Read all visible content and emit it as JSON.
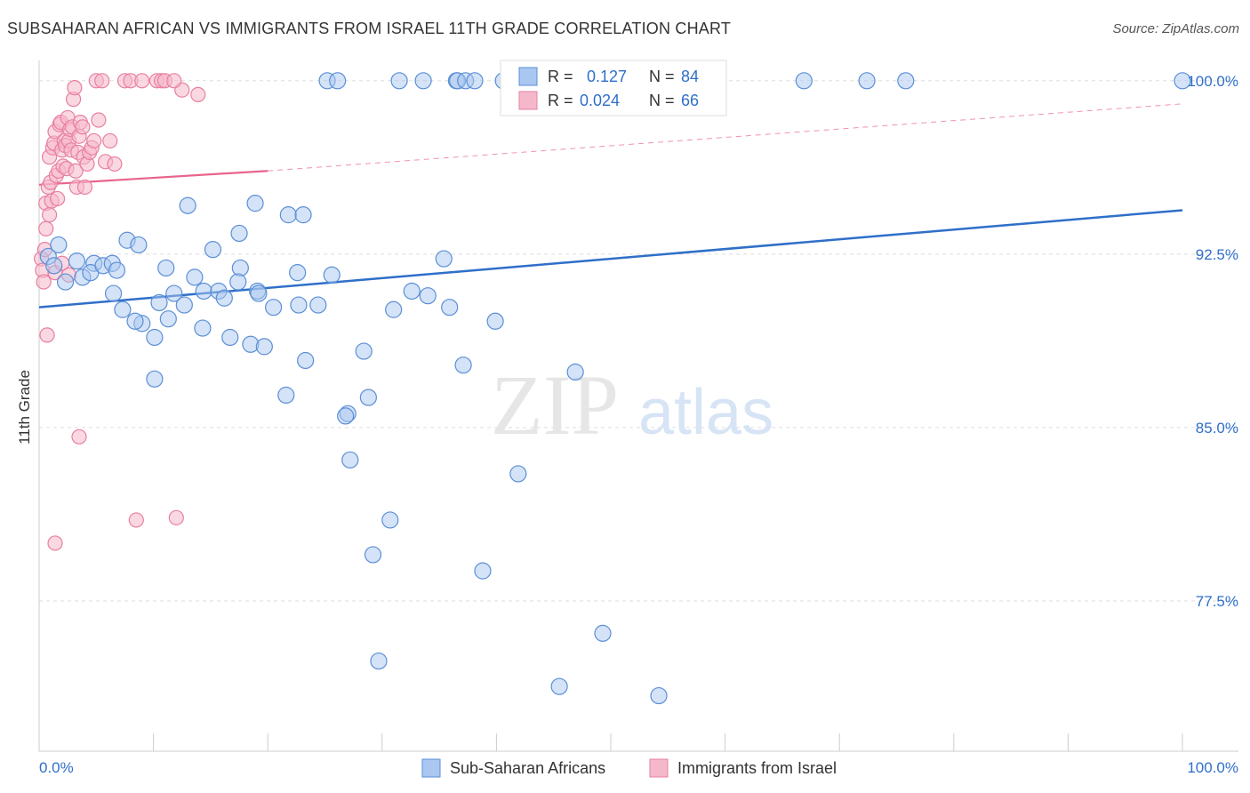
{
  "header": {
    "title": "SUBSAHARAN AFRICAN VS IMMIGRANTS FROM ISRAEL 11TH GRADE CORRELATION CHART",
    "source": "Source: ZipAtlas.com"
  },
  "watermark": {
    "zip": "ZIP",
    "atlas": "atlas"
  },
  "legend_box": {
    "rows": [
      {
        "r_label": "R =",
        "r_value": "0.127",
        "n_label": "N =",
        "n_value": "84"
      },
      {
        "r_label": "R =",
        "r_value": "0.024",
        "n_label": "N =",
        "n_value": "66"
      }
    ]
  },
  "colors": {
    "blue_fill": "#a9c7f0",
    "blue_stroke": "#5b8fd6",
    "blue_line": "#2f6fc9",
    "pink_fill": "#f5b8cb",
    "pink_stroke": "#e87fa0",
    "pink_line": "#e8648c",
    "value_text": "#2f6fc9",
    "grid": "#dddddd"
  },
  "chart_data": {
    "type": "scatter",
    "title": "SUBSAHARAN AFRICAN VS IMMIGRANTS FROM ISRAEL 11TH GRADE CORRELATION CHART",
    "xlabel": "",
    "ylabel": "11th Grade",
    "xlim": [
      0,
      100
    ],
    "ylim": [
      71,
      100.8
    ],
    "x_tick_labels": [
      "0.0%",
      "100.0%"
    ],
    "y_ticks": [
      77.5,
      85.0,
      92.5,
      100.0
    ],
    "y_tick_labels": [
      "77.5%",
      "85.0%",
      "92.5%",
      "100.0%"
    ],
    "grid": "horizontal dashed",
    "legend_placement": "bottom-center",
    "series": [
      {
        "name": "Sub-Saharan Africans",
        "R": 0.127,
        "N": 84,
        "trend": {
          "x": [
            0,
            100
          ],
          "y": [
            90.2,
            94.4
          ],
          "style": "solid"
        },
        "points": [
          [
            0.8,
            92.4
          ],
          [
            1.3,
            92.0
          ],
          [
            1.7,
            92.9
          ],
          [
            2.3,
            91.3
          ],
          [
            3.3,
            92.2
          ],
          [
            3.8,
            91.5
          ],
          [
            4.8,
            92.1
          ],
          [
            4.5,
            91.7
          ],
          [
            5.6,
            92.0
          ],
          [
            6.5,
            90.8
          ],
          [
            6.4,
            92.1
          ],
          [
            7.3,
            90.1
          ],
          [
            6.8,
            91.8
          ],
          [
            7.7,
            93.1
          ],
          [
            8.7,
            92.9
          ],
          [
            9.0,
            89.5
          ],
          [
            8.4,
            89.6
          ],
          [
            10.1,
            88.9
          ],
          [
            11.1,
            91.9
          ],
          [
            11.8,
            90.8
          ],
          [
            10.5,
            90.4
          ],
          [
            10.1,
            87.1
          ],
          [
            11.3,
            89.7
          ],
          [
            13.0,
            94.6
          ],
          [
            13.6,
            91.5
          ],
          [
            15.2,
            92.7
          ],
          [
            14.4,
            90.9
          ],
          [
            15.7,
            90.9
          ],
          [
            12.7,
            90.3
          ],
          [
            16.2,
            90.6
          ],
          [
            14.3,
            89.3
          ],
          [
            17.5,
            93.4
          ],
          [
            16.7,
            88.9
          ],
          [
            17.6,
            91.9
          ],
          [
            18.5,
            88.6
          ],
          [
            18.9,
            94.7
          ],
          [
            17.4,
            91.3
          ],
          [
            19.1,
            90.9
          ],
          [
            19.2,
            90.8
          ],
          [
            20.5,
            90.2
          ],
          [
            19.7,
            88.5
          ],
          [
            21.8,
            94.2
          ],
          [
            23.1,
            94.2
          ],
          [
            22.6,
            91.7
          ],
          [
            22.7,
            90.3
          ],
          [
            23.3,
            87.9
          ],
          [
            25.6,
            91.6
          ],
          [
            21.6,
            86.4
          ],
          [
            24.4,
            90.3
          ],
          [
            28.4,
            88.3
          ],
          [
            27.0,
            85.6
          ],
          [
            28.8,
            86.3
          ],
          [
            26.8,
            85.5
          ],
          [
            27.2,
            83.6
          ],
          [
            29.2,
            79.5
          ],
          [
            30.7,
            81.0
          ],
          [
            31.0,
            90.1
          ],
          [
            32.6,
            90.9
          ],
          [
            34.0,
            90.7
          ],
          [
            35.4,
            92.3
          ],
          [
            35.9,
            90.2
          ],
          [
            37.1,
            87.7
          ],
          [
            39.9,
            89.6
          ],
          [
            29.7,
            74.9
          ],
          [
            31.5,
            100.0
          ],
          [
            33.6,
            100.0
          ],
          [
            36.5,
            100.0
          ],
          [
            36.6,
            100.0
          ],
          [
            37.3,
            100.0
          ],
          [
            38.1,
            100.0
          ],
          [
            40.6,
            100.0
          ],
          [
            38.8,
            78.8
          ],
          [
            41.1,
            100.0
          ],
          [
            41.9,
            83.0
          ],
          [
            46.9,
            87.4
          ],
          [
            45.5,
            73.8
          ],
          [
            49.3,
            76.1
          ],
          [
            54.2,
            73.4
          ],
          [
            66.9,
            100.0
          ],
          [
            72.4,
            100.0
          ],
          [
            75.8,
            100.0
          ],
          [
            100.0,
            100.0
          ],
          [
            25.2,
            100.0
          ],
          [
            26.1,
            100.0
          ]
        ]
      },
      {
        "name": "Immigrants from Israel",
        "R": 0.024,
        "N": 66,
        "trend": {
          "x": [
            0,
            20
          ],
          "y": [
            95.5,
            96.1
          ],
          "style": "solid",
          "extension": {
            "x": [
              20,
              100
            ],
            "y": [
              96.1,
              99.0
            ],
            "style": "dashed"
          }
        },
        "points": [
          [
            0.2,
            92.3
          ],
          [
            0.3,
            91.8
          ],
          [
            0.4,
            91.3
          ],
          [
            0.5,
            92.7
          ],
          [
            0.6,
            93.6
          ],
          [
            0.7,
            89.0
          ],
          [
            0.6,
            94.7
          ],
          [
            0.8,
            95.4
          ],
          [
            0.9,
            94.2
          ],
          [
            0.9,
            96.7
          ],
          [
            1.0,
            95.6
          ],
          [
            1.1,
            94.8
          ],
          [
            1.2,
            97.1
          ],
          [
            1.3,
            97.3
          ],
          [
            1.4,
            97.8
          ],
          [
            1.5,
            95.9
          ],
          [
            1.6,
            94.9
          ],
          [
            1.7,
            96.1
          ],
          [
            1.8,
            98.1
          ],
          [
            1.9,
            98.2
          ],
          [
            2.0,
            97.0
          ],
          [
            2.1,
            96.3
          ],
          [
            2.2,
            97.4
          ],
          [
            2.3,
            97.2
          ],
          [
            2.4,
            96.2
          ],
          [
            2.5,
            98.4
          ],
          [
            2.6,
            97.4
          ],
          [
            2.7,
            97.9
          ],
          [
            2.8,
            97.0
          ],
          [
            2.9,
            98.0
          ],
          [
            3.0,
            99.2
          ],
          [
            3.1,
            99.7
          ],
          [
            3.2,
            96.1
          ],
          [
            3.3,
            95.4
          ],
          [
            3.4,
            96.9
          ],
          [
            3.5,
            97.6
          ],
          [
            3.6,
            98.2
          ],
          [
            3.8,
            98.0
          ],
          [
            3.9,
            96.7
          ],
          [
            4.0,
            95.4
          ],
          [
            4.2,
            96.4
          ],
          [
            4.4,
            96.9
          ],
          [
            4.6,
            97.1
          ],
          [
            4.8,
            97.4
          ],
          [
            5.0,
            100.0
          ],
          [
            5.2,
            98.3
          ],
          [
            5.5,
            100.0
          ],
          [
            5.8,
            96.5
          ],
          [
            6.2,
            97.4
          ],
          [
            6.6,
            96.4
          ],
          [
            1.4,
            91.7
          ],
          [
            2.0,
            92.1
          ],
          [
            2.6,
            91.6
          ],
          [
            1.4,
            80.0
          ],
          [
            3.5,
            84.6
          ],
          [
            8.5,
            81.0
          ],
          [
            12.0,
            81.1
          ],
          [
            7.5,
            100.0
          ],
          [
            8.0,
            100.0
          ],
          [
            9.0,
            100.0
          ],
          [
            10.3,
            100.0
          ],
          [
            10.7,
            100.0
          ],
          [
            11.0,
            100.0
          ],
          [
            12.5,
            99.6
          ],
          [
            13.9,
            99.4
          ],
          [
            11.8,
            100.0
          ]
        ]
      }
    ]
  },
  "bottom_legend": {
    "items": [
      {
        "label": "Sub-Saharan Africans"
      },
      {
        "label": "Immigrants from Israel"
      }
    ]
  }
}
